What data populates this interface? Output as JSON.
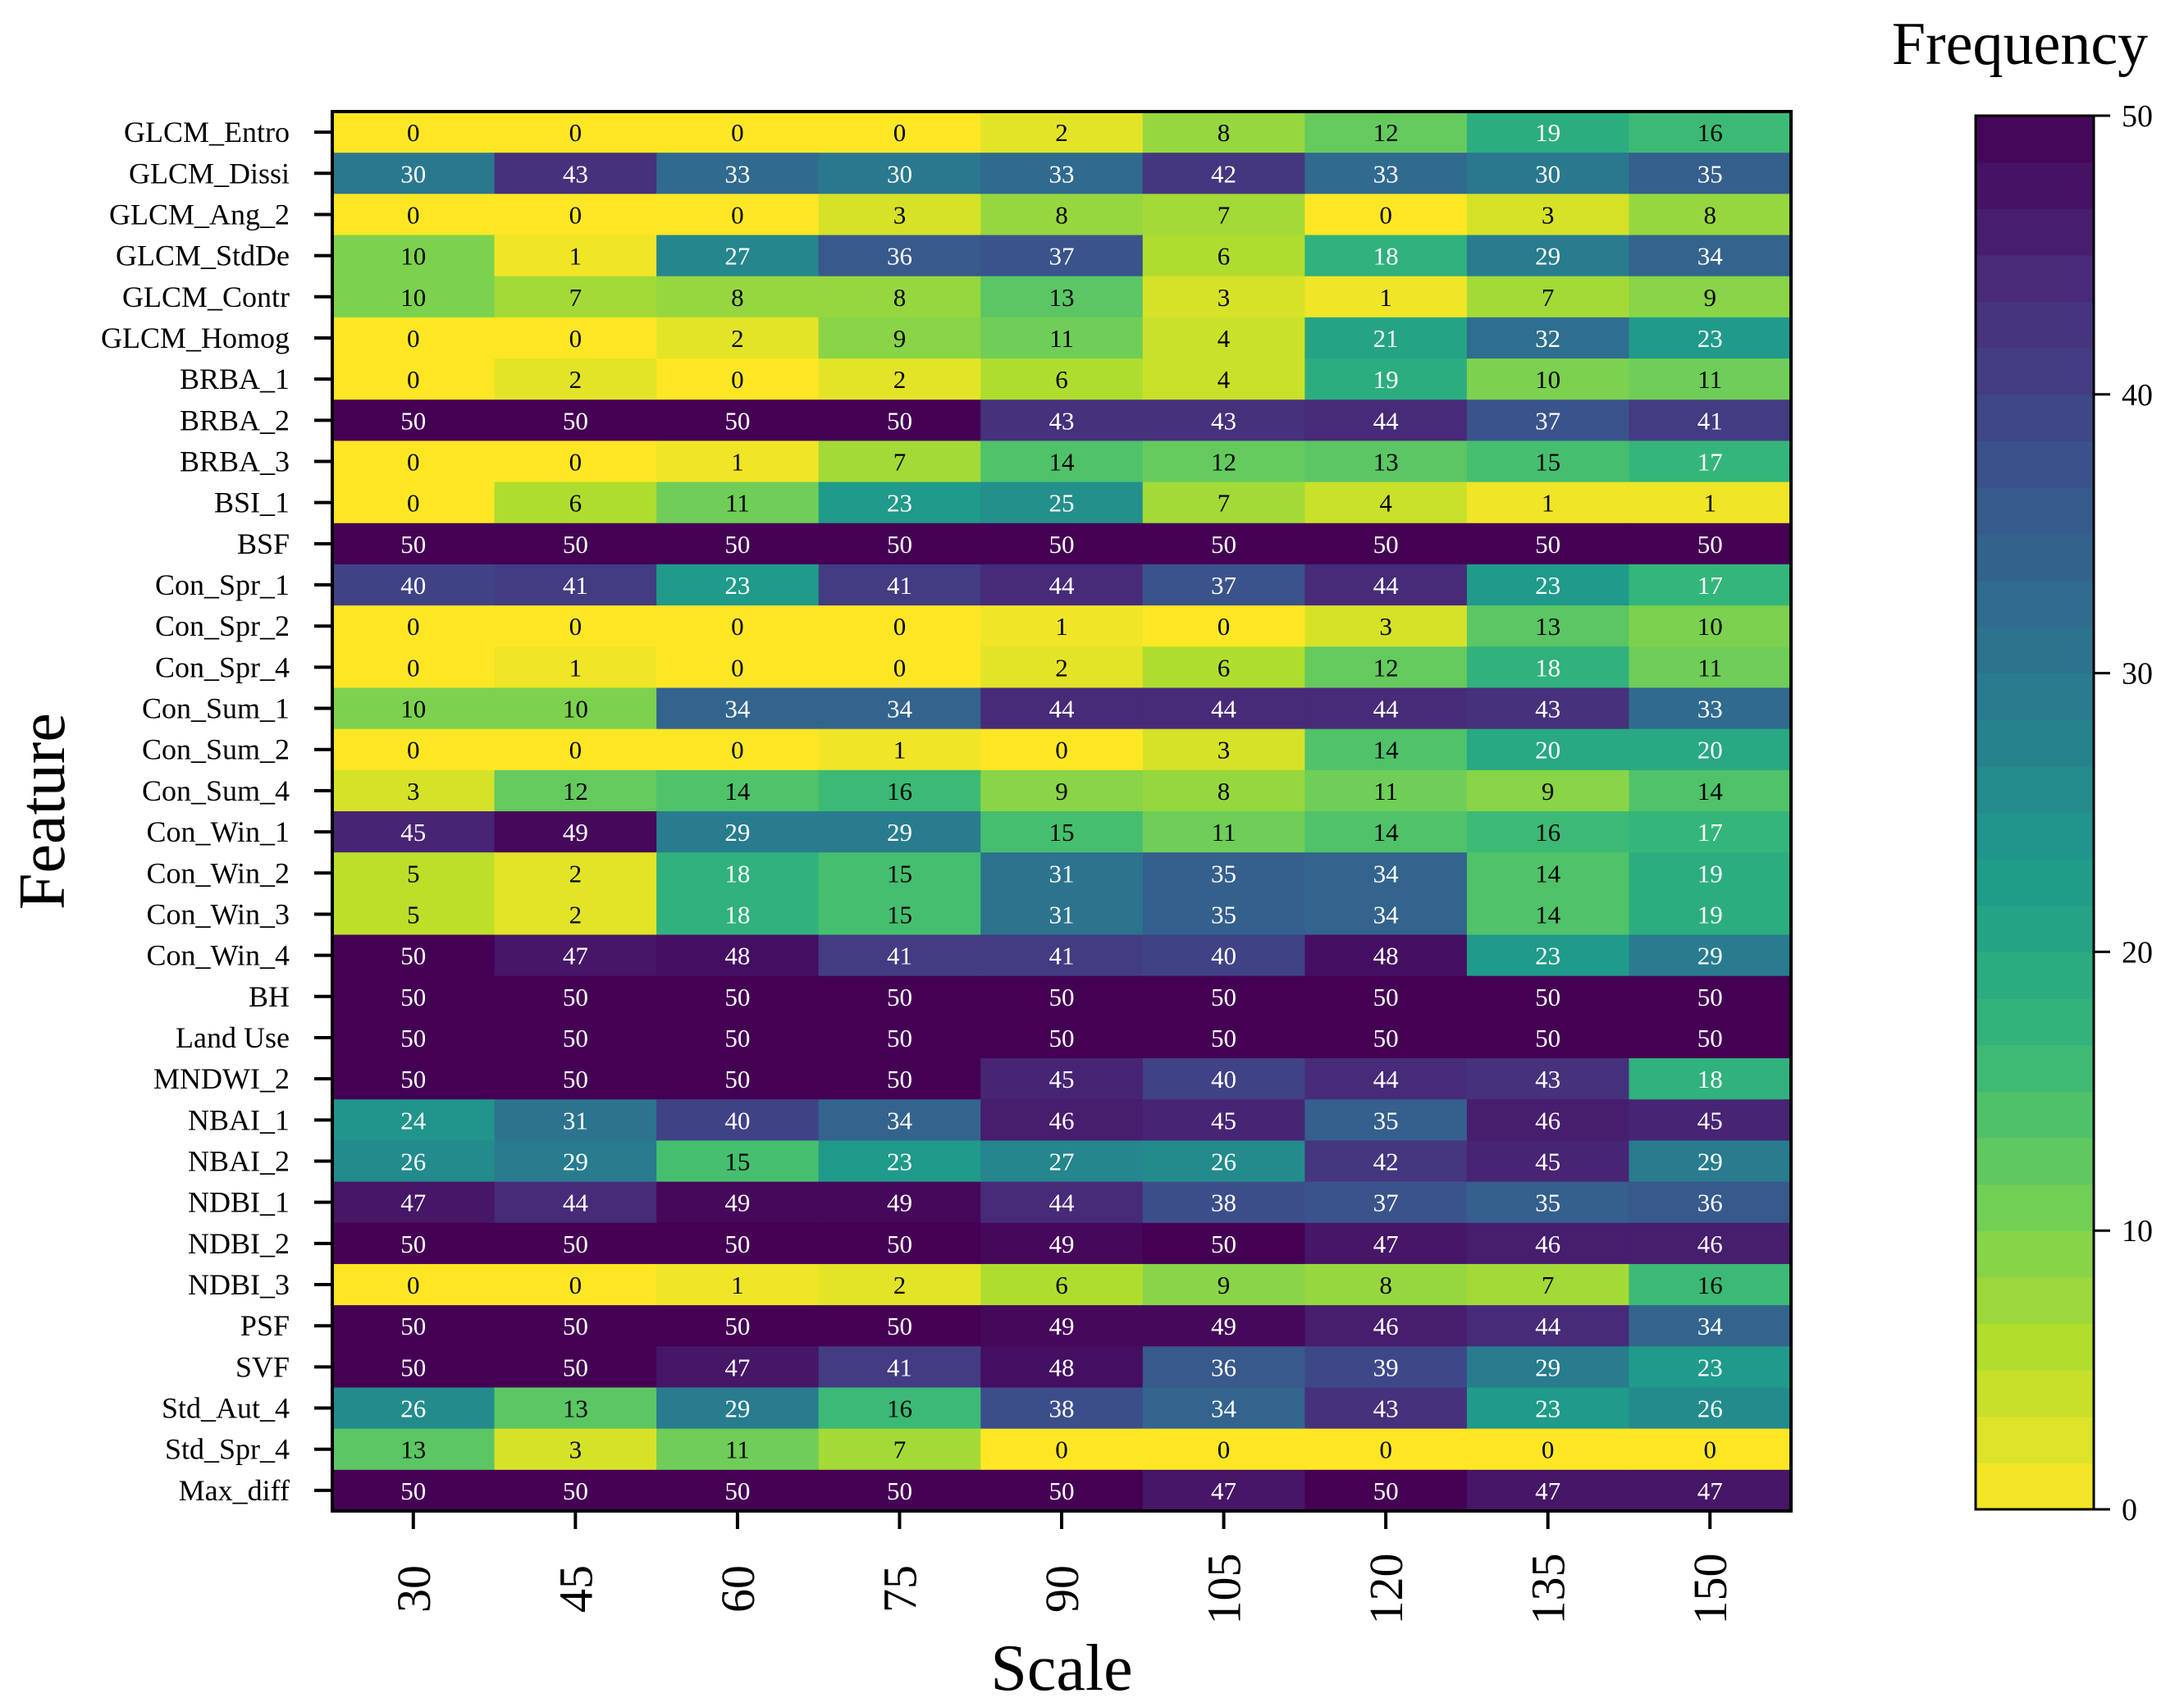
{
  "chart_data": {
    "type": "heatmap",
    "title": "",
    "xlabel": "Scale",
    "ylabel": "Feature",
    "x_categories": [
      "30",
      "45",
      "60",
      "75",
      "90",
      "105",
      "120",
      "135",
      "150"
    ],
    "y_categories": [
      "GLCM_Entro",
      "GLCM_Dissi",
      "GLCM_Ang_2",
      "GLCM_StdDe",
      "GLCM_Contr",
      "GLCM_Homog",
      "BRBA_1",
      "BRBA_2",
      "BRBA_3",
      "BSI_1",
      "BSF",
      "Con_Spr_1",
      "Con_Spr_2",
      "Con_Spr_4",
      "Con_Sum_1",
      "Con_Sum_2",
      "Con_Sum_4",
      "Con_Win_1",
      "Con_Win_2",
      "Con_Win_3",
      "Con_Win_4",
      "BH",
      "Land Use",
      "MNDWI_2",
      "NBAI_1",
      "NBAI_2",
      "NDBI_1",
      "NDBI_2",
      "NDBI_3",
      "PSF",
      "SVF",
      "Std_Aut_4",
      "Std_Spr_4",
      "Max_diff"
    ],
    "values": [
      [
        0,
        0,
        0,
        0,
        2,
        8,
        12,
        19,
        16
      ],
      [
        30,
        43,
        33,
        30,
        33,
        42,
        33,
        30,
        35
      ],
      [
        0,
        0,
        0,
        3,
        8,
        7,
        0,
        3,
        8
      ],
      [
        10,
        1,
        27,
        36,
        37,
        6,
        18,
        29,
        34
      ],
      [
        10,
        7,
        8,
        8,
        13,
        3,
        1,
        7,
        9
      ],
      [
        0,
        0,
        2,
        9,
        11,
        4,
        21,
        32,
        23
      ],
      [
        0,
        2,
        0,
        2,
        6,
        4,
        19,
        10,
        11
      ],
      [
        50,
        50,
        50,
        50,
        43,
        43,
        44,
        37,
        41
      ],
      [
        0,
        0,
        1,
        7,
        14,
        12,
        13,
        15,
        17
      ],
      [
        0,
        6,
        11,
        23,
        25,
        7,
        4,
        1,
        1
      ],
      [
        50,
        50,
        50,
        50,
        50,
        50,
        50,
        50,
        50
      ],
      [
        40,
        41,
        23,
        41,
        44,
        37,
        44,
        23,
        17
      ],
      [
        0,
        0,
        0,
        0,
        1,
        0,
        3,
        13,
        10
      ],
      [
        0,
        1,
        0,
        0,
        2,
        6,
        12,
        18,
        11
      ],
      [
        10,
        10,
        34,
        34,
        44,
        44,
        44,
        43,
        33
      ],
      [
        0,
        0,
        0,
        1,
        0,
        3,
        14,
        20,
        20
      ],
      [
        3,
        12,
        14,
        16,
        9,
        8,
        11,
        9,
        14
      ],
      [
        45,
        49,
        29,
        29,
        15,
        11,
        14,
        16,
        17
      ],
      [
        5,
        2,
        18,
        15,
        31,
        35,
        34,
        14,
        19
      ],
      [
        5,
        2,
        18,
        15,
        31,
        35,
        34,
        14,
        19
      ],
      [
        50,
        47,
        48,
        41,
        41,
        40,
        48,
        23,
        29
      ],
      [
        50,
        50,
        50,
        50,
        50,
        50,
        50,
        50,
        50
      ],
      [
        50,
        50,
        50,
        50,
        50,
        50,
        50,
        50,
        50
      ],
      [
        50,
        50,
        50,
        50,
        45,
        40,
        44,
        43,
        18
      ],
      [
        24,
        31,
        40,
        34,
        46,
        45,
        35,
        46,
        45
      ],
      [
        26,
        29,
        15,
        23,
        27,
        26,
        42,
        45,
        29
      ],
      [
        47,
        44,
        49,
        49,
        44,
        38,
        37,
        35,
        36
      ],
      [
        50,
        50,
        50,
        50,
        49,
        50,
        47,
        46,
        46
      ],
      [
        0,
        0,
        1,
        2,
        6,
        9,
        8,
        7,
        16
      ],
      [
        50,
        50,
        50,
        50,
        49,
        49,
        46,
        44,
        34
      ],
      [
        50,
        50,
        47,
        41,
        48,
        36,
        39,
        29,
        23
      ],
      [
        26,
        13,
        29,
        16,
        38,
        34,
        43,
        23,
        26
      ],
      [
        13,
        3,
        11,
        7,
        0,
        0,
        0,
        0,
        0
      ],
      [
        50,
        50,
        50,
        50,
        50,
        47,
        50,
        47,
        47
      ]
    ],
    "colorbar": {
      "title": "Frequency",
      "min": 0,
      "max": 50,
      "ticks": [
        0,
        10,
        20,
        30,
        40,
        50
      ],
      "colormap": "viridis-reversed",
      "colors_low_to_high": [
        "#fde725",
        "#b5de2b",
        "#6ece58",
        "#35b779",
        "#1f9e89",
        "#26828e",
        "#31688e",
        "#3e4989",
        "#482878",
        "#440154"
      ]
    }
  }
}
